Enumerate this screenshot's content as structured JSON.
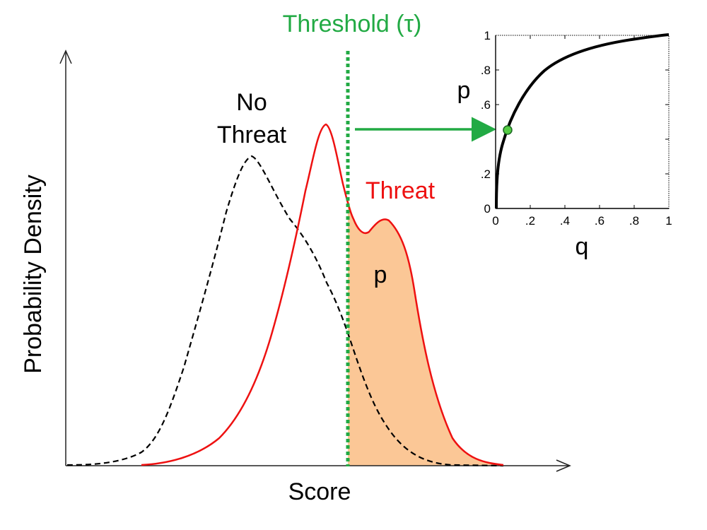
{
  "main_plot": {
    "xlabel": "Score",
    "ylabel": "Probability Density",
    "no_threat_label_line1": "No",
    "no_threat_label_line2": "Threat",
    "threat_label": "Threat",
    "area_label": "p",
    "threshold_label": "Threshold (τ)"
  },
  "inset": {
    "xlabel": "q",
    "ylabel": "p",
    "x_ticks": [
      "0",
      ".2",
      ".4",
      ".6",
      ".8",
      "1"
    ],
    "y_ticks": [
      "0",
      ".2",
      ".6",
      ".8",
      "1"
    ]
  },
  "colors": {
    "threat": "#ee1111",
    "no_threat": "#000000",
    "threshold": "#22aa44",
    "fill": "#fbc796",
    "marker": "#55cc44"
  }
}
